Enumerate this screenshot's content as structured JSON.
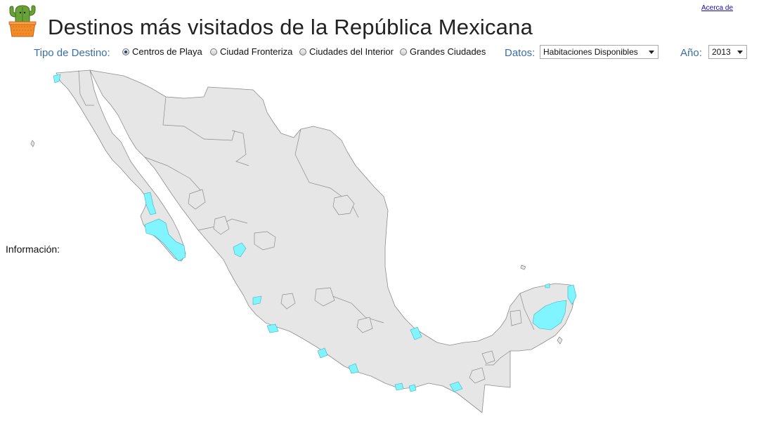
{
  "header": {
    "title": "Destinos más visitados de la República Mexicana",
    "about_link": "Acerca de"
  },
  "icons": {
    "logo": "cactus-pot-icon"
  },
  "controls": {
    "destination_type_label": "Tipo de Destino:",
    "destination_types": [
      {
        "label": "Centros de Playa",
        "selected": true
      },
      {
        "label": "Ciudad Fronteriza",
        "selected": false
      },
      {
        "label": "Ciudades del Interior",
        "selected": false
      },
      {
        "label": "Grandes Ciudades",
        "selected": false
      }
    ],
    "data_label": "Datos:",
    "data_value": "Habitaciones Disponibles",
    "year_label": "Año:",
    "year_value": "2013"
  },
  "info": {
    "label": "Información:"
  },
  "colors": {
    "land": "#e6e6e6",
    "border": "#8c8c8c",
    "highlight": "#80f4ff",
    "label": "#3a6ea5"
  }
}
